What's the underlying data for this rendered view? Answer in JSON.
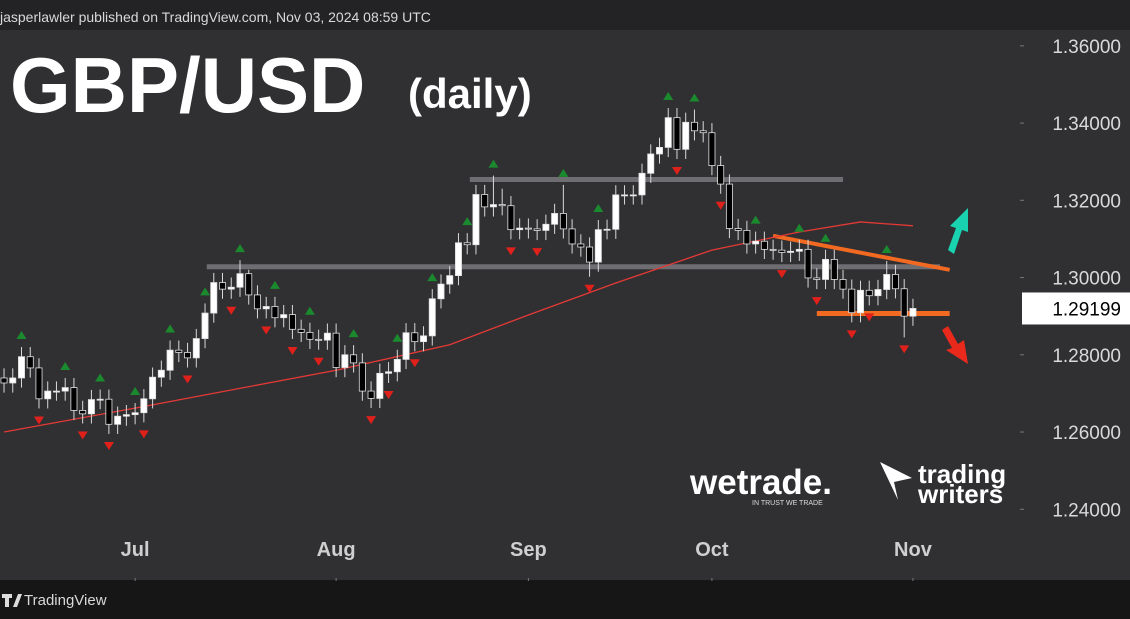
{
  "header": {
    "text": "jasperlawler published on TradingView.com, Nov 03, 2024 08:59 UTC"
  },
  "footer": {
    "brand": "TradingView"
  },
  "watermarks": {
    "wetrade": "wetrade.",
    "wetrade_tagline": "IN TRUST WE TRADE",
    "tw_line1": "trading",
    "tw_line2": "writers"
  },
  "chart_data": {
    "type": "candlestick",
    "title": "GBP/USD",
    "subtitle": "(daily)",
    "up_color": "#ffffff",
    "down_color": "#000000",
    "wick_color": "#d8d8d8",
    "ma_color": "#e53935",
    "xlim": [
      -0.46,
      116.25
    ],
    "ylim": [
      1.2222,
      1.3641
    ],
    "xticks": [
      {
        "value": 15,
        "label": "Jul"
      },
      {
        "value": 38,
        "label": "Aug"
      },
      {
        "value": 60,
        "label": "Sep"
      },
      {
        "value": 81,
        "label": "Oct"
      },
      {
        "value": 104,
        "label": "Nov"
      }
    ],
    "yticks": [
      {
        "value": 1.36,
        "label": "1.36000"
      },
      {
        "value": 1.34,
        "label": "1.34000"
      },
      {
        "value": 1.32,
        "label": "1.32000"
      },
      {
        "value": 1.3,
        "label": "1.30000"
      },
      {
        "value": 1.28,
        "label": "1.28000"
      },
      {
        "value": 1.26,
        "label": "1.26000"
      },
      {
        "value": 1.24,
        "label": "1.24000"
      }
    ],
    "last_price": {
      "value": 1.29199,
      "label": "1.29199"
    },
    "open": [
      1.274,
      1.2727,
      1.274,
      1.2795,
      1.2766,
      1.2686,
      1.2706,
      1.2706,
      1.2715,
      1.2656,
      1.2647,
      1.2684,
      1.2685,
      1.262,
      1.2641,
      1.2645,
      1.265,
      1.2686,
      1.2742,
      1.276,
      1.2812,
      1.2806,
      1.2792,
      1.2842,
      1.2908,
      1.2987,
      1.297,
      1.2975,
      1.301,
      1.2955,
      1.2919,
      1.2925,
      1.2896,
      1.2904,
      1.2866,
      1.2858,
      1.284,
      1.2838,
      1.2856,
      1.2767,
      1.28,
      1.2779,
      1.2706,
      1.2687,
      1.2752,
      1.2756,
      1.2788,
      1.2857,
      1.2834,
      1.2849,
      1.2945,
      1.2983,
      1.3005,
      1.309,
      1.3085,
      1.3215,
      1.3183,
      1.3189,
      1.3186,
      1.3124,
      1.3128,
      1.3126,
      1.3122,
      1.3138,
      1.3166,
      1.3126,
      1.3087,
      1.3079,
      1.304,
      1.3124,
      1.3125,
      1.3214,
      1.3214,
      1.3214,
      1.327,
      1.332,
      1.3337,
      1.3414,
      1.3332,
      1.3402,
      1.338,
      1.3375,
      1.329,
      1.3242,
      1.3127,
      1.3122,
      1.3087,
      1.3094,
      1.3073,
      1.3071,
      1.3065,
      1.3068,
      1.3073,
      1.2999,
      1.2995,
      1.3047,
      1.2995,
      1.297,
      1.2909,
      1.2967,
      1.2953,
      1.2969,
      1.3008,
      1.2971,
      1.29
    ],
    "high": [
      1.2765,
      1.2765,
      1.282,
      1.282,
      1.2791,
      1.2731,
      1.2731,
      1.274,
      1.274,
      1.2681,
      1.2709,
      1.271,
      1.271,
      1.2666,
      1.267,
      1.2675,
      1.2711,
      1.2767,
      1.2785,
      1.2837,
      1.2837,
      1.2831,
      1.2867,
      1.2933,
      1.3012,
      1.3012,
      1.3,
      1.3045,
      1.302,
      1.298,
      1.295,
      1.295,
      1.2929,
      1.2929,
      1.2891,
      1.2883,
      1.2865,
      1.2881,
      1.2881,
      1.2825,
      1.2825,
      1.2804,
      1.2731,
      1.2777,
      1.2781,
      1.2813,
      1.2882,
      1.2882,
      1.2874,
      1.297,
      1.3008,
      1.303,
      1.3115,
      1.3115,
      1.324,
      1.324,
      1.3264,
      1.323,
      1.3211,
      1.3153,
      1.3153,
      1.3151,
      1.3163,
      1.3191,
      1.324,
      1.3151,
      1.3112,
      1.3104,
      1.3149,
      1.315,
      1.3239,
      1.3239,
      1.3239,
      1.3295,
      1.3345,
      1.3362,
      1.3439,
      1.3439,
      1.3427,
      1.3435,
      1.3405,
      1.34,
      1.3315,
      1.3267,
      1.3152,
      1.3147,
      1.3119,
      1.3119,
      1.3098,
      1.3096,
      1.3093,
      1.3098,
      1.3098,
      1.3024,
      1.3072,
      1.3072,
      1.302,
      1.2995,
      1.2992,
      1.2992,
      1.2994,
      1.3043,
      1.3033,
      1.2996,
      1.2945
    ],
    "low": [
      1.2702,
      1.2702,
      1.2715,
      1.2741,
      1.2661,
      1.2661,
      1.2681,
      1.2681,
      1.2631,
      1.2622,
      1.2622,
      1.2659,
      1.2595,
      1.2595,
      1.2616,
      1.262,
      1.2625,
      1.2661,
      1.2717,
      1.2735,
      1.2781,
      1.2767,
      1.2767,
      1.2817,
      1.2883,
      1.2945,
      1.2945,
      1.295,
      1.293,
      1.2894,
      1.2894,
      1.2871,
      1.2871,
      1.2841,
      1.2833,
      1.2815,
      1.2813,
      1.2813,
      1.2742,
      1.2742,
      1.2754,
      1.2681,
      1.2662,
      1.2662,
      1.2727,
      1.2731,
      1.2763,
      1.2809,
      1.2809,
      1.2824,
      1.292,
      1.2958,
      1.298,
      1.306,
      1.306,
      1.3158,
      1.3158,
      1.3161,
      1.3099,
      1.3099,
      1.3101,
      1.3097,
      1.3097,
      1.3113,
      1.3101,
      1.3062,
      1.3054,
      1.3002,
      1.3015,
      1.3099,
      1.31,
      1.3189,
      1.3189,
      1.3189,
      1.3245,
      1.3295,
      1.3312,
      1.3307,
      1.3307,
      1.3355,
      1.335,
      1.3265,
      1.3217,
      1.3102,
      1.3097,
      1.3062,
      1.3062,
      1.3048,
      1.3046,
      1.304,
      1.304,
      1.3043,
      1.2974,
      1.297,
      1.297,
      1.297,
      1.2945,
      1.2884,
      1.2884,
      1.2928,
      1.2928,
      1.2944,
      1.2946,
      1.2845,
      1.2875
    ],
    "close": [
      1.2727,
      1.274,
      1.2795,
      1.2766,
      1.2686,
      1.2706,
      1.2706,
      1.2715,
      1.2656,
      1.2647,
      1.2684,
      1.2685,
      1.262,
      1.2641,
      1.2645,
      1.265,
      1.2686,
      1.2742,
      1.276,
      1.2812,
      1.2806,
      1.2792,
      1.2842,
      1.2908,
      1.2987,
      1.297,
      1.2975,
      1.301,
      1.2955,
      1.2919,
      1.2925,
      1.2896,
      1.2904,
      1.2866,
      1.2858,
      1.284,
      1.2838,
      1.2856,
      1.2767,
      1.28,
      1.2779,
      1.2706,
      1.2687,
      1.2752,
      1.2756,
      1.2788,
      1.2857,
      1.2834,
      1.2849,
      1.2945,
      1.2983,
      1.3005,
      1.309,
      1.3085,
      1.3215,
      1.3183,
      1.3189,
      1.3186,
      1.3124,
      1.3128,
      1.3126,
      1.3122,
      1.3138,
      1.3166,
      1.3126,
      1.3087,
      1.3079,
      1.304,
      1.3124,
      1.3125,
      1.3214,
      1.3214,
      1.3214,
      1.327,
      1.332,
      1.3337,
      1.3414,
      1.3332,
      1.3402,
      1.338,
      1.3375,
      1.329,
      1.3242,
      1.3127,
      1.3122,
      1.3087,
      1.3094,
      1.3073,
      1.3071,
      1.3065,
      1.3068,
      1.3073,
      1.2999,
      1.2995,
      1.3047,
      1.2995,
      1.297,
      1.2909,
      1.2967,
      1.2953,
      1.2969,
      1.3008,
      1.2971,
      1.29,
      1.292
    ],
    "ma": {
      "x": [
        0,
        15,
        38,
        51,
        60,
        70,
        81,
        91,
        98,
        104
      ],
      "values": [
        1.26,
        1.2662,
        1.276,
        1.2826,
        1.2903,
        1.2986,
        1.3071,
        1.3118,
        1.3144,
        1.3134
      ]
    },
    "fractals_up": [
      2,
      7,
      11,
      15,
      19,
      23,
      27,
      31,
      35,
      40,
      45,
      49,
      53,
      56,
      64,
      68,
      76,
      79,
      86,
      91,
      94,
      101
    ],
    "fractals_down": [
      4,
      9,
      12,
      16,
      21,
      26,
      30,
      33,
      36,
      42,
      44,
      47,
      58,
      61,
      67,
      77,
      82,
      89,
      93,
      97,
      99,
      103
    ],
    "levels": [
      {
        "y": 1.3254,
        "x": [
          53.3,
          96
        ],
        "color": "#6e6e72"
      },
      {
        "y": 1.3028,
        "x": [
          23.2,
          107.1
        ],
        "color": "#6e6e72"
      },
      {
        "y": 1.2907,
        "x": [
          93,
          108.2
        ],
        "color": "#f26a21"
      }
    ],
    "trendlines": [
      {
        "x": [
          88,
          108.2
        ],
        "y": [
          1.3108,
          1.302
        ],
        "color": "#f26a21"
      }
    ]
  }
}
